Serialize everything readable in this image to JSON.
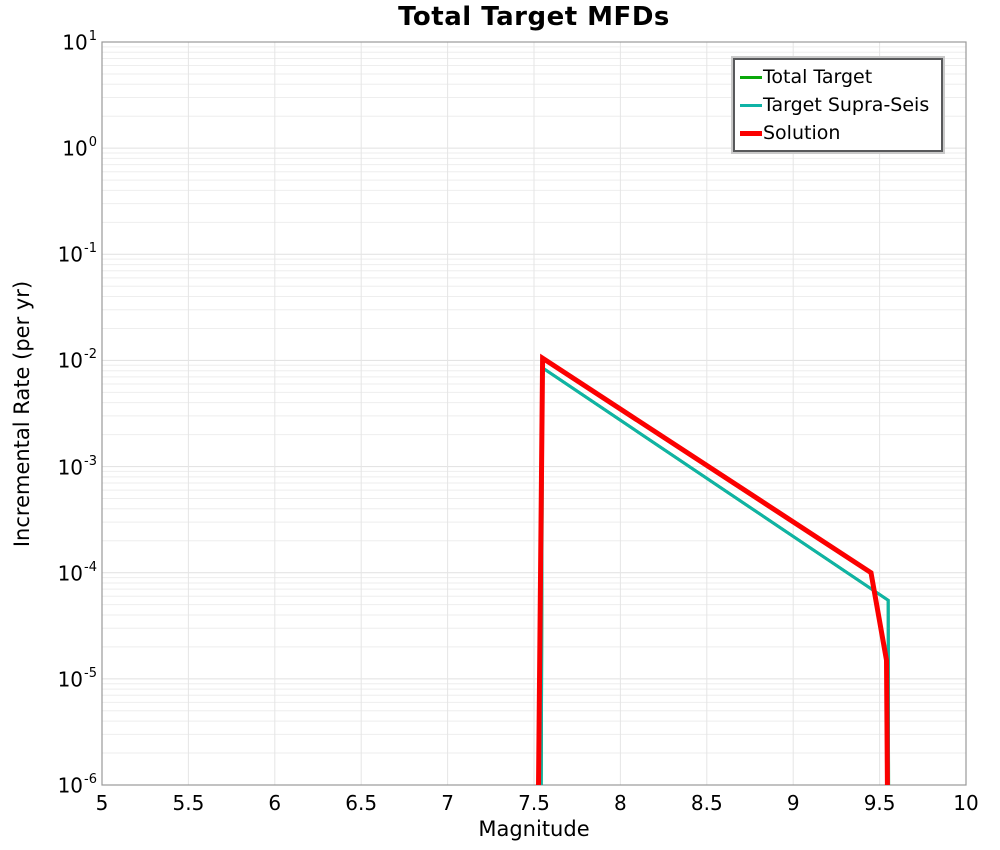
{
  "chart_data": {
    "type": "line",
    "title": "Total Target MFDs",
    "xlabel": "Magnitude",
    "ylabel": "Incremental Rate (per yr)",
    "x_axis": {
      "min": 5,
      "max": 10,
      "ticks": [
        5,
        5.5,
        6,
        6.5,
        7,
        7.5,
        8,
        8.5,
        9,
        9.5,
        10
      ],
      "tick_labels": [
        "5",
        "5.5",
        "6",
        "6.5",
        "7",
        "7.5",
        "8",
        "8.5",
        "9",
        "9.5",
        "10"
      ]
    },
    "y_axis": {
      "scale": "log",
      "min": 1e-06,
      "max": 10,
      "tick_exponents": [
        1,
        0,
        -1,
        -2,
        -3,
        -4,
        -5,
        -6
      ]
    },
    "grid": {
      "major_color": "#e1e1e1",
      "minor_color": "#eeeeee",
      "vertical_color": "#e5e5e5",
      "frame_color": "#999999"
    },
    "legend": {
      "position": "top-right"
    },
    "series": [
      {
        "name": "Total Target",
        "color": "#0aa80a",
        "line_width": 3,
        "points": [
          [
            7.54,
            1e-07
          ],
          [
            7.55,
            0.0085
          ],
          [
            9.55,
            5.5e-05
          ],
          [
            9.553,
            1e-07
          ]
        ]
      },
      {
        "name": "Target Supra-Seis",
        "color": "#0fb3a6",
        "line_width": 3,
        "points": [
          [
            7.54,
            1e-07
          ],
          [
            7.55,
            0.0085
          ],
          [
            9.55,
            5.5e-05
          ],
          [
            9.553,
            1e-07
          ]
        ]
      },
      {
        "name": "Solution",
        "color": "#fb0000",
        "line_width": 5,
        "points": [
          [
            7.52,
            1e-07
          ],
          [
            7.55,
            0.0105
          ],
          [
            9.45,
            0.0001
          ],
          [
            9.54,
            1.5e-05
          ],
          [
            9.55,
            1e-07
          ]
        ]
      }
    ]
  }
}
